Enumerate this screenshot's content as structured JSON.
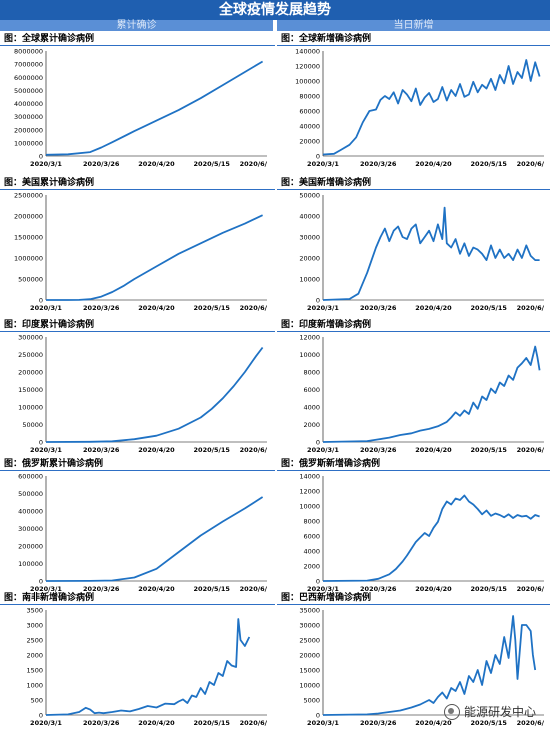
{
  "header": {
    "title": "全球疫情发展趋势",
    "left_column": "累计确诊",
    "right_column": "当日新增"
  },
  "watermark": {
    "text": "能源研发中心",
    "icon": "wechat-icon"
  },
  "colors": {
    "line": "#1f72c4",
    "header": "#1f5fb0",
    "subheader": "#5a8fd6"
  },
  "chart_data": [
    {
      "id": "global_cum",
      "type": "line",
      "title": "图：全球累计确诊病例",
      "x_ticks": [
        "2020/3/1",
        "2020/3/26",
        "2020/4/20",
        "2020/5/15",
        "2020/6/"
      ],
      "y_ticks": [
        "0",
        "1000000",
        "2000000",
        "3000000",
        "4000000",
        "5000000",
        "6000000",
        "7000000",
        "8000000"
      ],
      "ylim": [
        0,
        8000000
      ],
      "x": [
        0,
        10,
        20,
        25,
        30,
        40,
        50,
        60,
        70,
        80,
        90,
        98
      ],
      "values": [
        90000,
        130000,
        300000,
        650000,
        1050000,
        1900000,
        2700000,
        3500000,
        4400000,
        5400000,
        6400000,
        7200000
      ]
    },
    {
      "id": "global_new",
      "type": "line",
      "title": "图：全球新增确诊病例",
      "x_ticks": [
        "2020/3/1",
        "2020/3/26",
        "2020/4/20",
        "2020/5/15",
        "2020/6/"
      ],
      "y_ticks": [
        "0",
        "20000",
        "40000",
        "60000",
        "80000",
        "100000",
        "120000",
        "140000"
      ],
      "ylim": [
        0,
        140000
      ],
      "x": [
        0,
        5,
        8,
        12,
        15,
        18,
        21,
        24,
        26,
        28,
        30,
        32,
        34,
        36,
        38,
        40,
        42,
        44,
        46,
        48,
        50,
        52,
        54,
        56,
        58,
        60,
        62,
        64,
        66,
        68,
        70,
        72,
        74,
        76,
        78,
        80,
        82,
        84,
        86,
        88,
        90,
        92,
        94,
        96,
        98
      ],
      "values": [
        2000,
        3000,
        8000,
        15000,
        25000,
        45000,
        60000,
        62000,
        75000,
        80000,
        76000,
        85000,
        70000,
        88000,
        82000,
        73000,
        90000,
        68000,
        78000,
        84000,
        72000,
        76000,
        92000,
        74000,
        88000,
        80000,
        96000,
        79000,
        82000,
        99000,
        85000,
        95000,
        90000,
        103000,
        88000,
        108000,
        97000,
        120000,
        96000,
        112000,
        104000,
        128000,
        100000,
        125000,
        106000
      ]
    },
    {
      "id": "us_cum",
      "type": "line",
      "title": "图：美国累计确诊病例",
      "x_ticks": [
        "2020/3/1",
        "2020/3/26",
        "2020/4/20",
        "2020/5/15",
        "2020/6/"
      ],
      "y_ticks": [
        "0",
        "500000",
        "1000000",
        "1500000",
        "2000000",
        "2500000"
      ],
      "ylim": [
        0,
        2500000
      ],
      "x": [
        0,
        10,
        15,
        20,
        25,
        30,
        35,
        40,
        50,
        60,
        70,
        80,
        90,
        98
      ],
      "values": [
        100,
        500,
        3000,
        20000,
        80000,
        190000,
        330000,
        500000,
        800000,
        1100000,
        1350000,
        1600000,
        1820000,
        2020000
      ]
    },
    {
      "id": "us_new",
      "type": "line",
      "title": "图：美国新增确诊病例",
      "x_ticks": [
        "2020/3/1",
        "2020/3/26",
        "2020/4/20",
        "2020/5/15",
        "2020/6/"
      ],
      "y_ticks": [
        "0",
        "10000",
        "20000",
        "30000",
        "40000",
        "50000"
      ],
      "ylim": [
        0,
        50000
      ],
      "x": [
        0,
        12,
        16,
        18,
        20,
        22,
        24,
        26,
        28,
        30,
        32,
        34,
        36,
        38,
        40,
        42,
        44,
        46,
        48,
        50,
        52,
        54,
        55,
        56,
        58,
        60,
        62,
        64,
        66,
        68,
        70,
        72,
        74,
        76,
        78,
        80,
        82,
        84,
        86,
        88,
        90,
        92,
        94,
        96,
        98
      ],
      "values": [
        0,
        500,
        3000,
        8000,
        13000,
        19000,
        25000,
        30000,
        34000,
        28000,
        33000,
        35000,
        30000,
        29000,
        34000,
        36000,
        27000,
        30000,
        33000,
        28000,
        36000,
        29000,
        44000,
        27000,
        25000,
        29000,
        22000,
        27000,
        21000,
        25000,
        24000,
        22000,
        19000,
        26000,
        20000,
        24000,
        20000,
        22000,
        19000,
        24000,
        20000,
        26000,
        21000,
        19000,
        19000
      ]
    },
    {
      "id": "india_cum",
      "type": "line",
      "title": "图：印度累计确诊病例",
      "x_ticks": [
        "2020/3/1",
        "2020/3/26",
        "2020/4/20",
        "2020/5/15",
        "2020/6/"
      ],
      "y_ticks": [
        "0",
        "50000",
        "100000",
        "150000",
        "200000",
        "250000",
        "300000"
      ],
      "ylim": [
        0,
        300000
      ],
      "x": [
        0,
        20,
        30,
        40,
        50,
        60,
        70,
        75,
        80,
        85,
        90,
        95,
        98
      ],
      "values": [
        0,
        500,
        2000,
        8000,
        18000,
        38000,
        70000,
        95000,
        125000,
        160000,
        200000,
        245000,
        270000
      ]
    },
    {
      "id": "india_new",
      "type": "line",
      "title": "图：印度新增确诊病例",
      "x_ticks": [
        "2020/3/1",
        "2020/3/26",
        "2020/4/20",
        "2020/5/15",
        "2020/6/"
      ],
      "y_ticks": [
        "0",
        "2000",
        "4000",
        "6000",
        "8000",
        "10000",
        "12000"
      ],
      "ylim": [
        0,
        12000
      ],
      "x": [
        0,
        20,
        25,
        30,
        35,
        40,
        44,
        48,
        52,
        56,
        58,
        60,
        62,
        64,
        66,
        68,
        70,
        72,
        74,
        76,
        78,
        80,
        82,
        84,
        86,
        88,
        90,
        92,
        94,
        96,
        97,
        98
      ],
      "values": [
        0,
        100,
        300,
        500,
        800,
        1000,
        1300,
        1500,
        1800,
        2300,
        2800,
        3400,
        3000,
        3600,
        3200,
        4500,
        3800,
        5200,
        4800,
        6100,
        5600,
        6800,
        6400,
        7600,
        7100,
        8500,
        9000,
        9600,
        8800,
        10900,
        9700,
        8200
      ]
    },
    {
      "id": "russia_cum",
      "type": "line",
      "title": "图：俄罗斯累计确诊病例",
      "x_ticks": [
        "2020/3/1",
        "2020/3/26",
        "2020/4/20",
        "2020/5/15",
        "2020/6/"
      ],
      "y_ticks": [
        "0",
        "100000",
        "200000",
        "300000",
        "400000",
        "500000",
        "600000"
      ],
      "ylim": [
        0,
        600000
      ],
      "x": [
        0,
        20,
        30,
        40,
        50,
        60,
        70,
        80,
        90,
        98
      ],
      "values": [
        0,
        500,
        3000,
        20000,
        70000,
        165000,
        260000,
        340000,
        415000,
        480000
      ]
    },
    {
      "id": "russia_new",
      "type": "line",
      "title": "图：俄罗斯新增确诊病例",
      "x_ticks": [
        "2020/3/1",
        "2020/3/26",
        "2020/4/20",
        "2020/5/15",
        "2020/6/"
      ],
      "y_ticks": [
        "0",
        "2000",
        "4000",
        "6000",
        "8000",
        "10000",
        "12000",
        "14000"
      ],
      "ylim": [
        0,
        14000
      ],
      "x": [
        0,
        20,
        25,
        30,
        33,
        36,
        38,
        40,
        42,
        44,
        46,
        48,
        50,
        52,
        54,
        56,
        58,
        60,
        62,
        64,
        66,
        68,
        70,
        72,
        74,
        76,
        78,
        80,
        82,
        84,
        86,
        88,
        90,
        92,
        94,
        96,
        98
      ],
      "values": [
        0,
        50,
        300,
        900,
        1600,
        2600,
        3400,
        4300,
        5200,
        5800,
        6400,
        6000,
        7100,
        7900,
        9600,
        10600,
        10200,
        11000,
        10800,
        11400,
        10600,
        10200,
        9600,
        8900,
        9400,
        8700,
        9000,
        8800,
        8500,
        8900,
        8400,
        8800,
        8600,
        8700,
        8300,
        8800,
        8600
      ]
    },
    {
      "id": "sa_new",
      "type": "line",
      "title": "图：南非新增确诊病例",
      "x_ticks": [
        "2020/3/1",
        "2020/3/26",
        "2020/4/20",
        "2020/5/15",
        "2020/6/"
      ],
      "y_ticks": [
        "0",
        "500",
        "1000",
        "1500",
        "2000",
        "2500",
        "3000",
        "3500"
      ],
      "ylim": [
        0,
        3500
      ],
      "x": [
        0,
        10,
        15,
        18,
        20,
        22,
        24,
        26,
        30,
        34,
        38,
        42,
        46,
        50,
        54,
        58,
        60,
        62,
        64,
        66,
        68,
        70,
        72,
        74,
        76,
        78,
        80,
        82,
        84,
        86,
        87,
        88,
        90,
        92
      ],
      "values": [
        0,
        20,
        100,
        240,
        180,
        60,
        80,
        60,
        100,
        150,
        120,
        200,
        300,
        250,
        380,
        360,
        450,
        520,
        400,
        650,
        600,
        900,
        700,
        1100,
        1000,
        1400,
        1300,
        1800,
        1650,
        1600,
        3200,
        2500,
        2300,
        2600
      ]
    },
    {
      "id": "brazil_new",
      "type": "line",
      "title": "图：巴西新增确诊病例",
      "x_ticks": [
        "2020/3/1",
        "2020/3/26",
        "2020/4/20",
        "2020/5/15",
        "2020/6/"
      ],
      "y_ticks": [
        "0",
        "5000",
        "10000",
        "15000",
        "20000",
        "25000",
        "30000",
        "35000"
      ],
      "ylim": [
        0,
        35000
      ],
      "x": [
        0,
        20,
        25,
        30,
        35,
        40,
        44,
        48,
        50,
        52,
        54,
        56,
        58,
        60,
        62,
        64,
        66,
        68,
        70,
        72,
        74,
        76,
        78,
        80,
        82,
        84,
        86,
        87,
        88,
        90,
        92,
        94,
        95,
        96
      ],
      "values": [
        0,
        200,
        500,
        1000,
        1500,
        2500,
        3500,
        5000,
        4000,
        6000,
        7500,
        5500,
        9000,
        8000,
        11000,
        7000,
        13000,
        11000,
        15000,
        10000,
        18000,
        14000,
        20000,
        17000,
        26000,
        19000,
        33000,
        25000,
        12000,
        30000,
        30000,
        28000,
        20000,
        15000
      ]
    }
  ]
}
